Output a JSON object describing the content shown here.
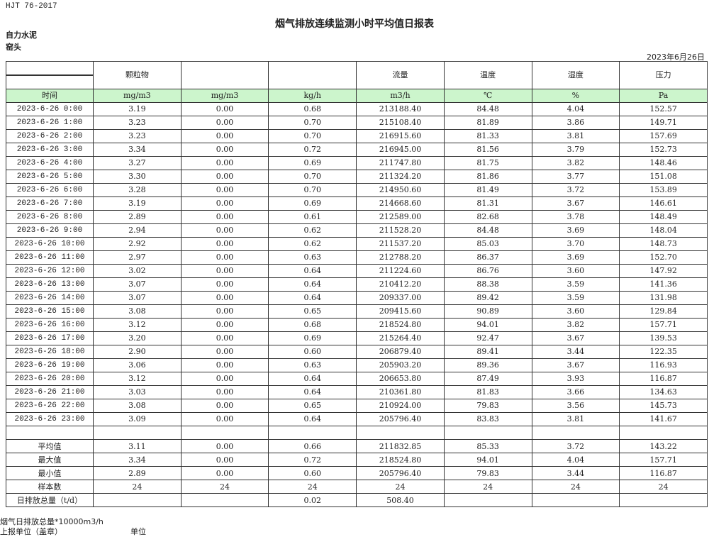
{
  "header": {
    "standard": "HJT  76-2017",
    "title": "烟气排放连续监测小时平均值日报表",
    "company": "自力水泥",
    "site": "窑头",
    "date": "2023年6月26日"
  },
  "table": {
    "headers": [
      "",
      "颗粒物",
      "",
      "",
      "流量",
      "温度",
      "湿度",
      "压力"
    ],
    "units": [
      "时间",
      "mg/m3",
      "mg/m3",
      "kg/h",
      "m3/h",
      "℃",
      "%",
      "Pa"
    ],
    "rows": [
      [
        "2023-6-26 0:00",
        "3.19",
        "0.00",
        "0.68",
        "213188.40",
        "84.48",
        "4.04",
        "152.57"
      ],
      [
        "2023-6-26 1:00",
        "3.23",
        "0.00",
        "0.70",
        "215108.40",
        "81.89",
        "3.86",
        "149.71"
      ],
      [
        "2023-6-26 2:00",
        "3.23",
        "0.00",
        "0.70",
        "216915.60",
        "81.33",
        "3.81",
        "157.69"
      ],
      [
        "2023-6-26 3:00",
        "3.34",
        "0.00",
        "0.72",
        "216945.00",
        "81.56",
        "3.79",
        "152.73"
      ],
      [
        "2023-6-26 4:00",
        "3.27",
        "0.00",
        "0.69",
        "211747.80",
        "81.75",
        "3.82",
        "148.46"
      ],
      [
        "2023-6-26 5:00",
        "3.30",
        "0.00",
        "0.70",
        "211324.20",
        "81.86",
        "3.77",
        "151.08"
      ],
      [
        "2023-6-26 6:00",
        "3.28",
        "0.00",
        "0.70",
        "214950.60",
        "81.49",
        "3.72",
        "153.89"
      ],
      [
        "2023-6-26 7:00",
        "3.19",
        "0.00",
        "0.69",
        "214668.60",
        "81.31",
        "3.67",
        "146.61"
      ],
      [
        "2023-6-26 8:00",
        "2.89",
        "0.00",
        "0.61",
        "212589.00",
        "82.68",
        "3.78",
        "148.49"
      ],
      [
        "2023-6-26 9:00",
        "2.94",
        "0.00",
        "0.62",
        "211528.20",
        "84.48",
        "3.69",
        "148.04"
      ],
      [
        "2023-6-26 10:00",
        "2.92",
        "0.00",
        "0.62",
        "211537.20",
        "85.03",
        "3.70",
        "148.73"
      ],
      [
        "2023-6-26 11:00",
        "2.97",
        "0.00",
        "0.63",
        "212788.20",
        "86.37",
        "3.69",
        "152.70"
      ],
      [
        "2023-6-26 12:00",
        "3.02",
        "0.00",
        "0.64",
        "211224.60",
        "86.76",
        "3.60",
        "147.92"
      ],
      [
        "2023-6-26 13:00",
        "3.07",
        "0.00",
        "0.64",
        "210412.20",
        "88.38",
        "3.59",
        "141.36"
      ],
      [
        "2023-6-26 14:00",
        "3.07",
        "0.00",
        "0.64",
        "209337.00",
        "89.42",
        "3.59",
        "131.98"
      ],
      [
        "2023-6-26 15:00",
        "3.08",
        "0.00",
        "0.65",
        "209415.60",
        "90.89",
        "3.60",
        "129.84"
      ],
      [
        "2023-6-26 16:00",
        "3.12",
        "0.00",
        "0.68",
        "218524.80",
        "94.01",
        "3.82",
        "157.71"
      ],
      [
        "2023-6-26 17:00",
        "3.20",
        "0.00",
        "0.69",
        "215264.40",
        "92.47",
        "3.67",
        "139.53"
      ],
      [
        "2023-6-26 18:00",
        "2.90",
        "0.00",
        "0.60",
        "206879.40",
        "89.41",
        "3.44",
        "122.35"
      ],
      [
        "2023-6-26 19:00",
        "3.06",
        "0.00",
        "0.63",
        "205903.20",
        "89.36",
        "3.67",
        "116.93"
      ],
      [
        "2023-6-26 20:00",
        "3.12",
        "0.00",
        "0.64",
        "206653.80",
        "87.49",
        "3.93",
        "116.87"
      ],
      [
        "2023-6-26 21:00",
        "3.03",
        "0.00",
        "0.64",
        "210361.80",
        "81.83",
        "3.66",
        "134.63"
      ],
      [
        "2023-6-26 22:00",
        "3.08",
        "0.00",
        "0.65",
        "210924.00",
        "79.83",
        "3.56",
        "145.73"
      ],
      [
        "2023-6-26 23:00",
        "3.09",
        "0.00",
        "0.64",
        "205796.40",
        "83.83",
        "3.81",
        "141.67"
      ]
    ],
    "stats": [
      [
        "平均值",
        "3.11",
        "0.00",
        "0.66",
        "211832.85",
        "85.33",
        "3.72",
        "143.22"
      ],
      [
        "最大值",
        "3.34",
        "0.00",
        "0.72",
        "218524.80",
        "94.01",
        "4.04",
        "157.71"
      ],
      [
        "最小值",
        "2.89",
        "0.00",
        "0.60",
        "205796.40",
        "79.83",
        "3.44",
        "116.87"
      ],
      [
        "样本数",
        "24",
        "24",
        "24",
        "24",
        "24",
        "24",
        "24"
      ],
      [
        "日排放总量（t/d）",
        "",
        "",
        "0.02",
        "508.40",
        "",
        "",
        ""
      ]
    ]
  },
  "footer": {
    "note": "烟气日排放总量*10000m3/h",
    "reporter": "上报单位（盖章）",
    "unit_label": "单位"
  },
  "colors": {
    "unit_row_bg": "#ccf5cc",
    "border": "#333333"
  }
}
